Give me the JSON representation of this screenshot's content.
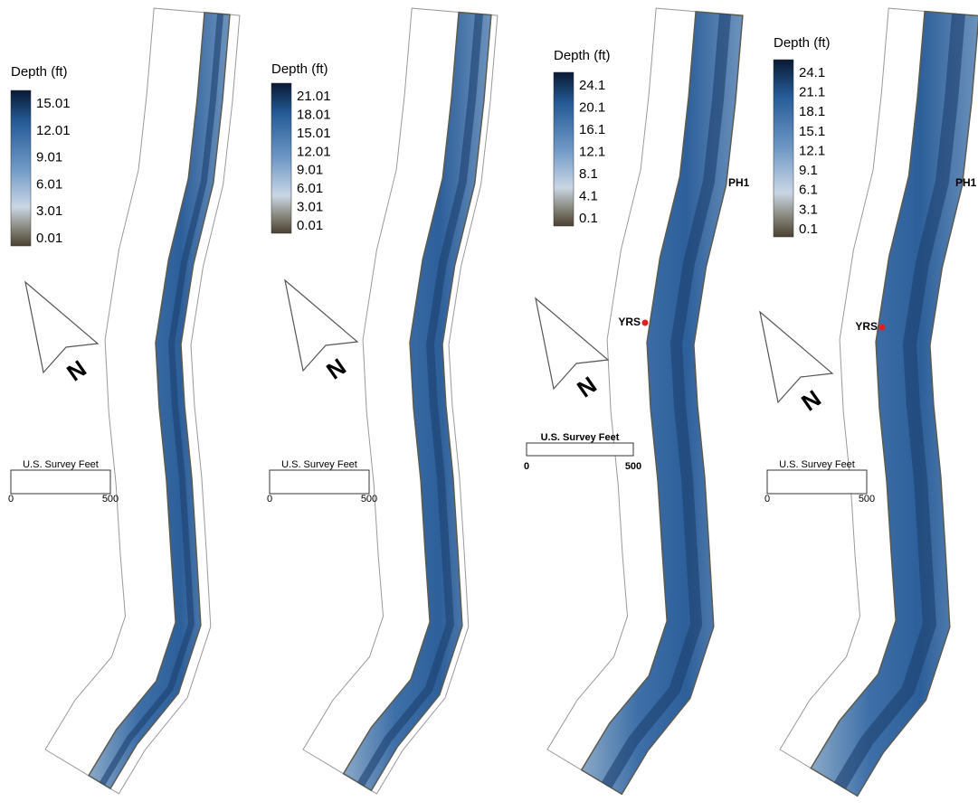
{
  "panels": [
    {
      "legend": {
        "title": "Depth (ft)",
        "labels": [
          "15.01",
          "12.01",
          "9.01",
          "6.01",
          "3.01",
          "0.01"
        ]
      },
      "north": "N",
      "scale_bar": {
        "unit": "U.S. Survey Feet",
        "start": "0",
        "end": "500"
      }
    },
    {
      "legend": {
        "title": "Depth (ft)",
        "labels": [
          "21.01",
          "18.01",
          "15.01",
          "12.01",
          "9.01",
          "6.01",
          "3.01",
          "0.01"
        ]
      },
      "north": "N",
      "scale_bar": {
        "unit": "U.S. Survey Feet",
        "start": "0",
        "end": "500"
      }
    },
    {
      "legend": {
        "title": "Depth (ft)",
        "labels": [
          "24.1",
          "20.1",
          "16.1",
          "12.1",
          "8.1",
          "4.1",
          "0.1"
        ]
      },
      "north": "N",
      "scale_bar": {
        "unit": "U.S. Survey Feet",
        "start": "0",
        "end": "500"
      },
      "sites": [
        "YRS",
        "PH1"
      ]
    },
    {
      "legend": {
        "title": "Depth (ft)",
        "labels": [
          "24.1",
          "21.1",
          "18.1",
          "15.1",
          "12.1",
          "9.1",
          "6.1",
          "3.1",
          "0.1"
        ]
      },
      "north": "N",
      "scale_bar": {
        "unit": "U.S. Survey Feet",
        "start": "0",
        "end": "500"
      },
      "sites": [
        "YRS",
        "PH1"
      ]
    }
  ]
}
